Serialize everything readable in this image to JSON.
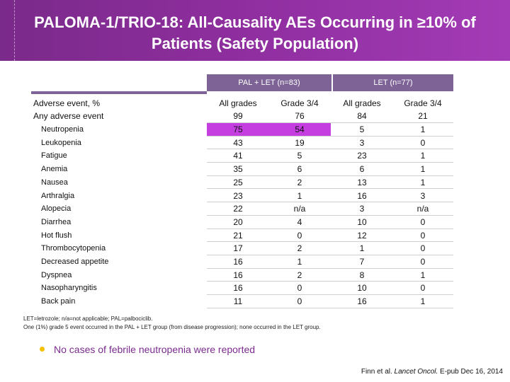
{
  "title": {
    "line1": "PALOMA-1/TRIO-18: All-Causality AEs Occurring in ≥10% of",
    "line2": "Patients (Safety Population)"
  },
  "table": {
    "group_pal": "PAL + LET (n=83)",
    "group_let": "LET (n=77)",
    "label_header": "Adverse event, %",
    "col_heads": [
      "All grades",
      "Grade 3/4",
      "All grades",
      "Grade 3/4"
    ],
    "any_ae": {
      "name": "Any adverse event",
      "values": [
        "99",
        "76",
        "84",
        "21"
      ]
    },
    "rows": [
      {
        "name": "Neutropenia",
        "values": [
          "75",
          "54",
          "5",
          "1"
        ]
      },
      {
        "name": "Leukopenia",
        "values": [
          "43",
          "19",
          "3",
          "0"
        ]
      },
      {
        "name": "Fatigue",
        "values": [
          "41",
          "5",
          "23",
          "1"
        ]
      },
      {
        "name": "Anemia",
        "values": [
          "35",
          "6",
          "6",
          "1"
        ]
      },
      {
        "name": "Nausea",
        "values": [
          "25",
          "2",
          "13",
          "1"
        ]
      },
      {
        "name": "Arthralgia",
        "values": [
          "23",
          "1",
          "16",
          "3"
        ]
      },
      {
        "name": "Alopecia",
        "values": [
          "22",
          "n/a",
          "3",
          "n/a"
        ]
      },
      {
        "name": "Diarrhea",
        "values": [
          "20",
          "4",
          "10",
          "0"
        ]
      },
      {
        "name": "Hot flush",
        "values": [
          "21",
          "0",
          "12",
          "0"
        ]
      },
      {
        "name": "Thrombocytopenia",
        "values": [
          "17",
          "2",
          "1",
          "0"
        ]
      },
      {
        "name": "Decreased appetite",
        "values": [
          "16",
          "1",
          "7",
          "0"
        ]
      },
      {
        "name": "Dyspnea",
        "values": [
          "16",
          "2",
          "8",
          "1"
        ]
      },
      {
        "name": "Nasopharyngitis",
        "values": [
          "16",
          "0",
          "10",
          "0"
        ]
      },
      {
        "name": "Back pain",
        "values": [
          "11",
          "0",
          "16",
          "1"
        ]
      }
    ],
    "highlight_color": "#c43ee0"
  },
  "footnotes": {
    "line1": "LET=letrozole; n/a=not applicable; PAL=palbociclib.",
    "line2": "One (1%) grade 5 event occurred in the PAL + LET group (from disease progression); none occurred in the LET group."
  },
  "bullet": "No cases of febrile neutropenia were reported",
  "citation": {
    "authors": "Finn et al.",
    "journal": "Lancet Oncol.",
    "rest": "E-pub Dec 16, 2014"
  },
  "colors": {
    "header": "#8e2e9e",
    "group_bar": "#7e6496",
    "bullet_text": "#7b2b8e",
    "bullet_dot": "#f2c200"
  }
}
